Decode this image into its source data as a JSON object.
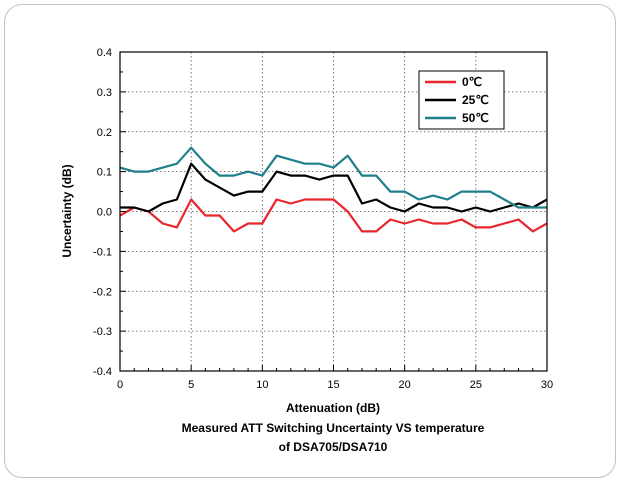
{
  "chart_data": {
    "type": "line",
    "xlabel": "Attenuation (dB)",
    "ylabel": "Uncertainty (dB)",
    "caption_line1": "Measured ATT Switching Uncertainty VS temperature",
    "caption_line2": "of DSA705/DSA710",
    "xlim": [
      0,
      30
    ],
    "ylim": [
      -0.4,
      0.4
    ],
    "xticks": [
      0,
      5,
      10,
      15,
      20,
      25,
      30
    ],
    "yticks": [
      -0.4,
      -0.3,
      -0.2,
      -0.1,
      0.0,
      0.1,
      0.2,
      0.3,
      0.4
    ],
    "xtick_labels": [
      "0",
      "5",
      "10",
      "15",
      "20",
      "25",
      "30"
    ],
    "ytick_labels": [
      "-0.4",
      "-0.3",
      "-0.2",
      "-0.1",
      "0.0",
      "0.1",
      "0.2",
      "0.3",
      "0.4"
    ],
    "grid": "dotted",
    "legend_position": "top-right",
    "x": [
      0,
      1,
      2,
      3,
      4,
      5,
      6,
      7,
      8,
      9,
      10,
      11,
      12,
      13,
      14,
      15,
      16,
      17,
      18,
      19,
      20,
      21,
      22,
      23,
      24,
      25,
      26,
      27,
      28,
      29,
      30
    ],
    "series": [
      {
        "name": "0℃",
        "color": "#e8262b",
        "values": [
          -0.01,
          0.01,
          0.0,
          -0.03,
          -0.04,
          0.03,
          -0.01,
          -0.01,
          -0.05,
          -0.03,
          -0.03,
          0.03,
          0.02,
          0.03,
          0.03,
          0.03,
          0.0,
          -0.05,
          -0.05,
          -0.02,
          -0.03,
          -0.02,
          -0.03,
          -0.03,
          -0.02,
          -0.04,
          -0.04,
          -0.03,
          -0.02,
          -0.05,
          -0.03
        ]
      },
      {
        "name": "25℃",
        "color": "#000000",
        "values": [
          0.01,
          0.01,
          0.0,
          0.02,
          0.03,
          0.12,
          0.08,
          0.06,
          0.04,
          0.05,
          0.05,
          0.1,
          0.09,
          0.09,
          0.08,
          0.09,
          0.09,
          0.02,
          0.03,
          0.01,
          0.0,
          0.02,
          0.01,
          0.01,
          0.0,
          0.01,
          0.0,
          0.01,
          0.02,
          0.01,
          0.03
        ]
      },
      {
        "name": "50℃",
        "color": "#1f7f8a",
        "values": [
          0.11,
          0.1,
          0.1,
          0.11,
          0.12,
          0.16,
          0.12,
          0.09,
          0.09,
          0.1,
          0.09,
          0.14,
          0.13,
          0.12,
          0.12,
          0.11,
          0.14,
          0.09,
          0.09,
          0.05,
          0.05,
          0.03,
          0.04,
          0.03,
          0.05,
          0.05,
          0.05,
          0.03,
          0.01,
          0.01,
          0.01
        ]
      }
    ]
  }
}
